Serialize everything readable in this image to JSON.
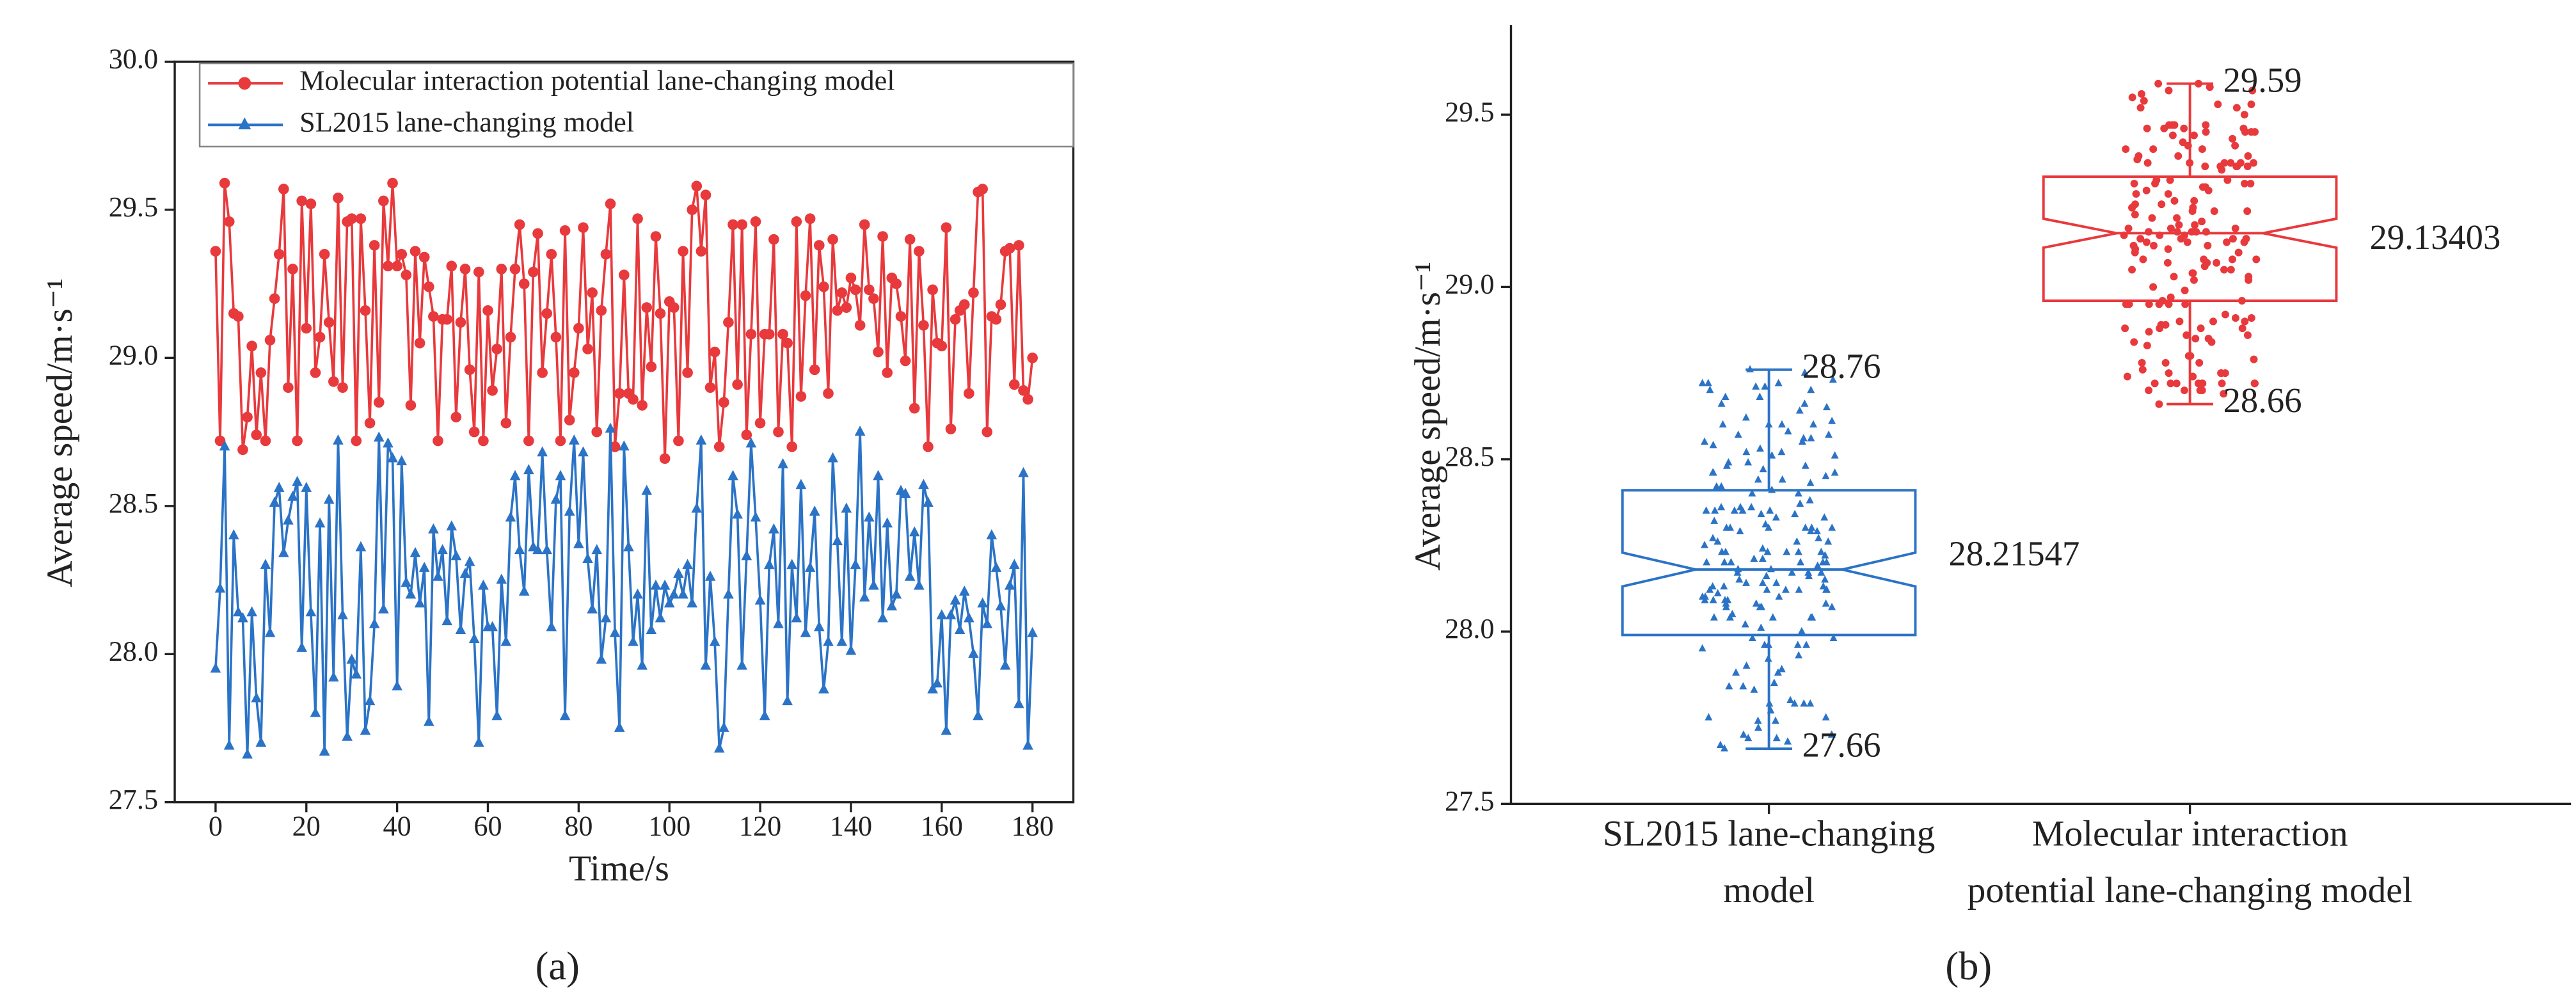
{
  "chart_data": [
    {
      "type": "line",
      "y_label": "Average speed/m·s⁻¹",
      "x_label": "Time/s",
      "caption": "(a)",
      "legend": "upper left",
      "xlim": [
        -9,
        189
      ],
      "xticks": [
        0,
        20,
        40,
        60,
        80,
        100,
        120,
        140,
        160,
        180
      ],
      "ylim": [
        27.5,
        30.0
      ],
      "yticks": [
        27.5,
        {
          "value": 28,
          "label": "28.0"
        },
        28.5,
        {
          "value": 29,
          "label": "29.0"
        },
        29.5,
        {
          "value": 30,
          "label": "30.0"
        }
      ],
      "x": [
        0,
        1,
        2,
        3,
        4,
        5,
        6,
        7,
        8,
        9,
        10,
        11,
        12,
        13,
        14,
        15,
        16,
        17,
        18,
        19,
        20,
        21,
        22,
        23,
        24,
        25,
        26,
        27,
        28,
        29,
        30,
        31,
        32,
        33,
        34,
        35,
        36,
        37,
        38,
        39,
        40,
        41,
        42,
        43,
        44,
        45,
        46,
        47,
        48,
        49,
        50,
        51,
        52,
        53,
        54,
        55,
        56,
        57,
        58,
        59,
        60,
        61,
        62,
        63,
        64,
        65,
        66,
        67,
        68,
        69,
        70,
        71,
        72,
        73,
        74,
        75,
        76,
        77,
        78,
        79,
        80,
        81,
        82,
        83,
        84,
        85,
        86,
        87,
        88,
        89,
        90,
        91,
        92,
        93,
        94,
        95,
        96,
        97,
        98,
        99,
        100,
        101,
        102,
        103,
        104,
        105,
        106,
        107,
        108,
        109,
        110,
        111,
        112,
        113,
        114,
        115,
        116,
        117,
        118,
        119,
        120,
        121,
        122,
        123,
        124,
        125,
        126,
        127,
        128,
        129,
        130,
        131,
        132,
        133,
        134,
        135,
        136,
        137,
        138,
        139,
        140,
        141,
        142,
        143,
        144,
        145,
        146,
        147,
        148,
        149,
        150,
        151,
        152,
        153,
        154,
        155,
        156,
        157,
        158,
        159,
        160,
        161,
        162,
        163,
        164,
        165,
        166,
        167,
        168,
        169,
        170,
        171,
        172,
        173,
        174,
        175,
        176,
        177,
        178,
        179,
        180
      ],
      "series": [
        {
          "name": "Molecular interaction potential lane-changing model",
          "color": "#e8393c",
          "marker": "circle",
          "values": [
            29.36,
            28.72,
            29.59,
            29.46,
            29.15,
            29.14,
            28.69,
            28.8,
            29.04,
            28.74,
            28.95,
            28.72,
            29.06,
            29.2,
            29.35,
            29.57,
            28.9,
            29.3,
            28.72,
            29.53,
            29.1,
            29.52,
            28.95,
            29.07,
            29.35,
            29.12,
            28.92,
            29.54,
            28.9,
            29.46,
            29.47,
            28.72,
            29.47,
            29.16,
            28.78,
            29.38,
            28.85,
            29.53,
            29.31,
            29.59,
            29.31,
            29.35,
            29.28,
            28.84,
            29.36,
            29.05,
            29.34,
            29.24,
            29.14,
            28.72,
            29.13,
            29.13,
            29.31,
            28.8,
            29.12,
            29.3,
            28.96,
            28.75,
            29.29,
            28.72,
            29.16,
            28.89,
            29.03,
            29.3,
            28.78,
            29.07,
            29.3,
            29.45,
            29.25,
            28.72,
            29.29,
            29.42,
            28.95,
            29.15,
            29.35,
            29.07,
            28.72,
            29.43,
            28.79,
            28.95,
            29.1,
            29.44,
            29.03,
            29.22,
            28.75,
            29.16,
            29.35,
            29.52,
            28.7,
            28.88,
            29.28,
            28.88,
            28.86,
            29.47,
            28.84,
            29.17,
            28.97,
            29.41,
            29.15,
            28.66,
            29.19,
            29.17,
            28.72,
            29.36,
            28.95,
            29.5,
            29.58,
            29.36,
            29.55,
            28.9,
            29.02,
            28.7,
            28.85,
            29.12,
            29.45,
            28.91,
            29.45,
            28.74,
            29.08,
            29.46,
            28.78,
            29.08,
            29.08,
            29.4,
            28.75,
            29.08,
            29.05,
            28.7,
            29.46,
            28.87,
            29.21,
            29.47,
            28.96,
            29.38,
            29.24,
            28.88,
            29.4,
            29.16,
            29.22,
            29.17,
            29.27,
            29.23,
            29.11,
            29.45,
            29.23,
            29.2,
            29.02,
            29.41,
            28.95,
            29.27,
            29.25,
            29.14,
            28.99,
            29.4,
            28.83,
            29.36,
            29.11,
            28.7,
            29.23,
            29.05,
            29.04,
            29.44,
            28.76,
            29.13,
            29.16,
            29.18,
            28.88,
            29.22,
            29.56,
            29.57,
            28.75,
            29.14,
            29.13,
            29.18,
            29.36,
            29.37,
            28.91,
            29.38,
            28.89,
            28.86,
            29.0
          ]
        },
        {
          "name": "SL2015 lane-changing model",
          "color": "#2b73c6",
          "marker": "triangle",
          "values": [
            27.95,
            28.22,
            28.7,
            27.69,
            28.4,
            28.14,
            28.12,
            27.66,
            28.14,
            27.85,
            27.7,
            28.3,
            28.07,
            28.51,
            28.56,
            28.34,
            28.45,
            28.53,
            28.58,
            28.02,
            28.56,
            28.14,
            27.8,
            28.44,
            27.67,
            28.52,
            27.92,
            28.72,
            28.13,
            27.72,
            27.98,
            27.93,
            28.36,
            27.74,
            27.84,
            28.1,
            28.73,
            28.15,
            28.71,
            28.66,
            27.89,
            28.65,
            28.24,
            28.2,
            28.34,
            28.17,
            28.29,
            27.77,
            28.42,
            28.26,
            28.35,
            28.11,
            28.43,
            28.33,
            28.08,
            28.27,
            28.31,
            28.05,
            27.7,
            28.23,
            28.09,
            28.09,
            27.79,
            28.25,
            28.04,
            28.46,
            28.6,
            28.35,
            28.21,
            28.62,
            28.36,
            28.35,
            28.68,
            28.35,
            28.09,
            28.52,
            28.6,
            27.79,
            28.48,
            28.72,
            28.37,
            28.68,
            28.32,
            28.15,
            28.35,
            27.98,
            28.12,
            28.76,
            28.07,
            27.75,
            28.7,
            28.36,
            28.04,
            28.2,
            27.96,
            28.55,
            28.08,
            28.23,
            28.12,
            28.23,
            28.17,
            28.2,
            28.27,
            28.2,
            28.3,
            28.17,
            28.49,
            28.72,
            27.96,
            28.26,
            28.04,
            27.68,
            27.75,
            28.2,
            28.6,
            28.47,
            27.96,
            28.33,
            28.71,
            28.46,
            28.18,
            27.79,
            28.3,
            28.42,
            28.1,
            28.64,
            27.84,
            28.3,
            28.12,
            28.57,
            28.07,
            28.29,
            28.48,
            28.09,
            27.88,
            28.04,
            28.66,
            28.38,
            28.04,
            28.49,
            28.01,
            28.3,
            28.75,
            28.19,
            28.46,
            28.23,
            28.6,
            28.12,
            28.44,
            28.16,
            28.2,
            28.55,
            28.54,
            28.26,
            28.41,
            28.23,
            28.57,
            28.51,
            27.88,
            27.9,
            28.13,
            27.74,
            28.13,
            28.18,
            28.08,
            28.21,
            28.12,
            28.0,
            27.79,
            28.17,
            28.1,
            28.4,
            28.29,
            28.16,
            27.96,
            28.23,
            28.3,
            27.83,
            28.61,
            27.69,
            28.07
          ]
        }
      ]
    },
    {
      "type": "box",
      "y_label": "Average speed/m·s⁻¹",
      "caption": "(b)",
      "ylim": [
        27.5,
        29.76
      ],
      "yticks": [
        27.5,
        {
          "value": 28,
          "label": "28.0"
        },
        28.5,
        {
          "value": 29,
          "label": "29.0"
        },
        29.5
      ],
      "categories": [
        [
          "SL2015 lane-changing",
          "model"
        ],
        [
          "Molecular interaction",
          "potential lane-changing model"
        ]
      ],
      "boxes": [
        {
          "color": "#2b73c6",
          "min": 27.66,
          "q1": 27.99,
          "median": 28.18,
          "q3": 28.41,
          "max": 28.76,
          "mean": 28.21547
        },
        {
          "color": "#e8393c",
          "min": 28.66,
          "q1": 28.96,
          "median": 29.156,
          "q3": 29.32,
          "max": 29.59,
          "mean": 29.13403
        }
      ]
    }
  ]
}
